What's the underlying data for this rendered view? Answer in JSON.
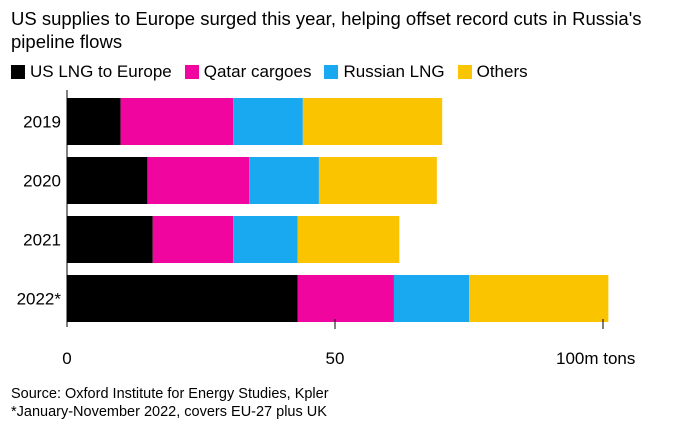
{
  "chart_data": {
    "type": "bar",
    "orientation": "horizontal",
    "stacked": true,
    "title": "US supplies to Europe surged this year, helping offset record cuts in Russia's pipeline flows",
    "categories": [
      "2019",
      "2020",
      "2021",
      "2022*"
    ],
    "series": [
      {
        "name": "US LNG to Europe",
        "color": "#000000",
        "values": [
          10,
          15,
          16,
          43
        ]
      },
      {
        "name": "Qatar cargoes",
        "color": "#f0069e",
        "values": [
          21,
          19,
          15,
          18
        ]
      },
      {
        "name": "Russian LNG",
        "color": "#18a9f0",
        "values": [
          13,
          13,
          12,
          14
        ]
      },
      {
        "name": "Others",
        "color": "#fbc400",
        "values": [
          26,
          22,
          19,
          26
        ]
      }
    ],
    "xlim": [
      0,
      100
    ],
    "xticks": [
      {
        "value": 0,
        "label": "0"
      },
      {
        "value": 50,
        "label": "50"
      },
      {
        "value": 100,
        "label": "100m tons"
      }
    ],
    "xlabel": "",
    "ylabel": "",
    "grid": false,
    "legend_position": "top-left"
  },
  "source": "Source: Oxford Institute for Energy Studies, Kpler",
  "footnote": "*January-November 2022, covers EU-27 plus UK"
}
